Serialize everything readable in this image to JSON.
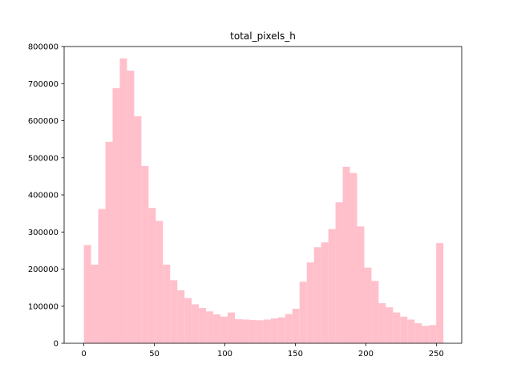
{
  "chart_data": {
    "type": "bar",
    "title": "total_pixels_h",
    "xlabel": "",
    "ylabel": "",
    "bar_color": "#ffc0cb",
    "xlim": [
      -14,
      268
    ],
    "ylim": [
      0,
      800000
    ],
    "x_ticks": [
      0,
      50,
      100,
      150,
      200,
      250
    ],
    "y_ticks": [
      0,
      100000,
      200000,
      300000,
      400000,
      500000,
      600000,
      700000,
      800000
    ],
    "grid": false,
    "bins": {
      "start": 0,
      "width": 5.1,
      "values": [
        265000,
        212000,
        362000,
        543000,
        688000,
        768000,
        735000,
        612000,
        478000,
        365000,
        330000,
        212000,
        170000,
        143000,
        122000,
        105000,
        95000,
        86000,
        78000,
        72000,
        83000,
        65000,
        64000,
        63000,
        62000,
        64000,
        67000,
        70000,
        79000,
        93000,
        166000,
        218000,
        259000,
        272000,
        308000,
        380000,
        476000,
        459000,
        315000,
        204000,
        168000,
        108000,
        97000,
        83000,
        72000,
        64000,
        54000,
        47000,
        49000,
        270000
      ]
    }
  }
}
